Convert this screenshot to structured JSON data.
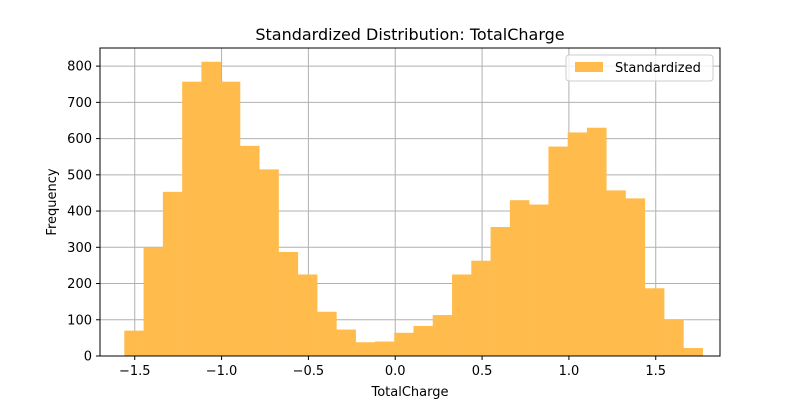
{
  "chart_data": {
    "type": "bar",
    "title": "Standardized Distribution: TotalCharge",
    "xlabel": "TotalCharge",
    "ylabel": "Frequency",
    "xlim": [
      -1.7,
      1.87
    ],
    "ylim": [
      0,
      850
    ],
    "xticks": [
      -1.5,
      -1.0,
      -0.5,
      0.0,
      0.5,
      1.0,
      1.5
    ],
    "xtick_labels": [
      "−1.5",
      "−1.0",
      "−0.5",
      "0.0",
      "0.5",
      "1.0",
      "1.5"
    ],
    "yticks": [
      0,
      100,
      200,
      300,
      400,
      500,
      600,
      700,
      800
    ],
    "ytick_labels": [
      "0",
      "100",
      "200",
      "300",
      "400",
      "500",
      "600",
      "700",
      "800"
    ],
    "grid": true,
    "legend_position": "top-right",
    "color": "#ffbc4d",
    "bin_start": -1.56,
    "bin_width": 0.111,
    "series": [
      {
        "name": "Standardized",
        "values": [
          70,
          300,
          453,
          757,
          812,
          757,
          580,
          515,
          287,
          225,
          122,
          73,
          38,
          40,
          64,
          83,
          113,
          225,
          263,
          356,
          430,
          418,
          578,
          617,
          630,
          457,
          435,
          187,
          100,
          22
        ]
      }
    ]
  }
}
